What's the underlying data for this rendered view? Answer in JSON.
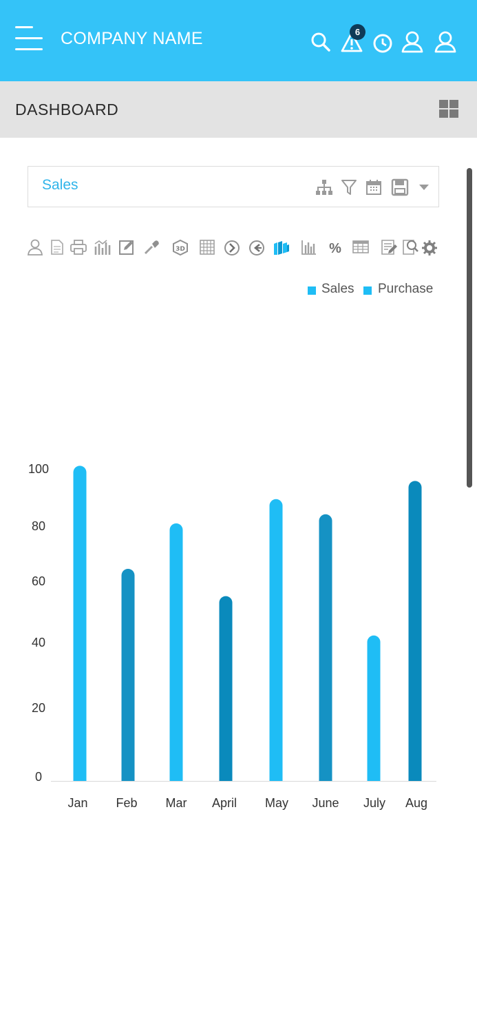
{
  "header": {
    "title": "COMPANY NAME",
    "alert_count": "6",
    "bg_color": "#34c3f8",
    "icons": [
      "menu-icon",
      "search-icon",
      "alert-icon",
      "clock-icon",
      "user-icon",
      "user-icon"
    ]
  },
  "subheader": {
    "title": "DASHBOARD",
    "icon": "grid-icon"
  },
  "panel": {
    "title": "Sales",
    "icons": [
      "hierarchy-icon",
      "filter-icon",
      "calendar-icon",
      "save-icon",
      "caret-down-icon"
    ]
  },
  "toolbar": {
    "icons": [
      "user-icon",
      "document-icon",
      "print-icon",
      "chart-stack-icon",
      "edit-icon",
      "eyedropper-icon",
      "3d-icon",
      "grid-table-icon",
      "arrow-right-circle-icon",
      "arrow-left-circle-icon",
      "3d-bar-icon",
      "bar-chart-icon",
      "percent-icon",
      "table-icon",
      "edit-document-icon",
      "search-document-icon",
      "gear-icon"
    ]
  },
  "legend": {
    "items": [
      {
        "label": "Sales",
        "color": "#1fbdf5"
      },
      {
        "label": "Purchase",
        "color": "#1fbdf5"
      }
    ]
  },
  "chart_data": {
    "type": "bar",
    "categories": [
      "Jan",
      "Feb",
      "Mar",
      "April",
      "May",
      "June",
      "July",
      "Aug"
    ],
    "series": [
      {
        "name": "Sales",
        "values": [
          104,
          70,
          85,
          61,
          93,
          88,
          48,
          99
        ]
      }
    ],
    "bar_colors": [
      "#1fbdf5",
      "#1592c4",
      "#1fbdf5",
      "#0a8abc",
      "#1fbdf5",
      "#1592c4",
      "#1fbdf5",
      "#0a8abc"
    ],
    "yticks": [
      "0",
      "20",
      "40",
      "60",
      "80",
      "100"
    ],
    "ylim": [
      0,
      110
    ],
    "title": "",
    "xlabel": "",
    "ylabel": "",
    "legend": "top-right"
  }
}
